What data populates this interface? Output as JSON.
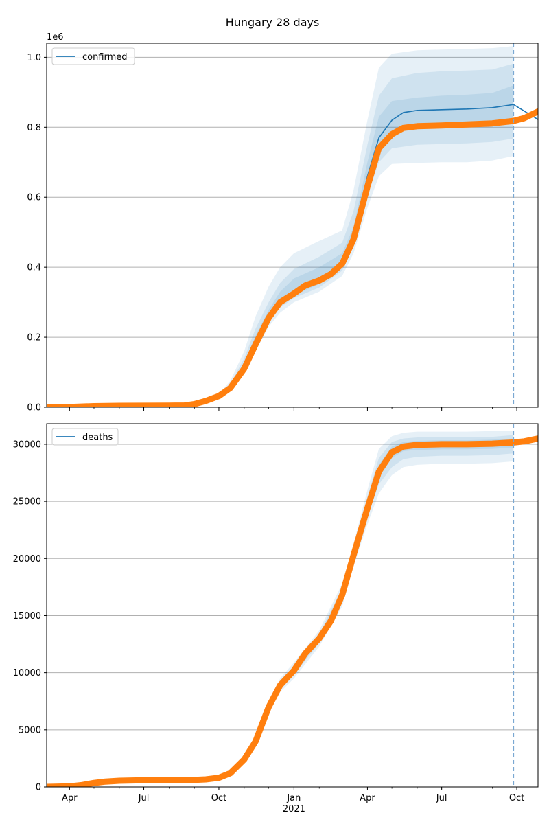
{
  "title": "Hungary 28 days",
  "colors": {
    "model": "#1f77b4",
    "observed": "#ff7f0e",
    "band": "#1f77b4",
    "grid": "#b0b0b0",
    "forecast_line": "#7aa8d2"
  },
  "x_axis": {
    "type": "date",
    "range": [
      "2020-03-04",
      "2021-10-27"
    ],
    "ticks": [
      {
        "date": "2020-04-01",
        "label": "Apr"
      },
      {
        "date": "2020-07-01",
        "label": "Jul"
      },
      {
        "date": "2020-10-01",
        "label": "Oct"
      },
      {
        "date": "2021-01-01",
        "label": "Jan"
      },
      {
        "date": "2021-04-01",
        "label": "Apr"
      },
      {
        "date": "2021-07-01",
        "label": "Jul"
      },
      {
        "date": "2021-10-01",
        "label": "Oct"
      }
    ],
    "year_label": {
      "date": "2021-01-01",
      "label": "2021"
    }
  },
  "chart_data": [
    {
      "type": "line",
      "title": "Hungary 28 days",
      "legend": "confirmed",
      "legend_position": "top-left",
      "grid": "y",
      "ylim": [
        0,
        1040000
      ],
      "y_offset_label": "1e6",
      "y_ticks": [
        "0.0",
        "0.2",
        "0.4",
        "0.6",
        "0.8",
        "1.0"
      ],
      "y_tick_values": [
        0,
        200000,
        400000,
        600000,
        800000,
        1000000
      ],
      "forecast_date": "2021-09-27",
      "observed": {
        "x": [
          "2020-03-04",
          "2020-04-01",
          "2020-05-01",
          "2020-06-01",
          "2020-07-01",
          "2020-08-01",
          "2020-08-20",
          "2020-09-01",
          "2020-09-15",
          "2020-10-01",
          "2020-10-15",
          "2020-11-01",
          "2020-11-15",
          "2020-12-01",
          "2020-12-15",
          "2021-01-01",
          "2021-01-15",
          "2021-02-01",
          "2021-02-15",
          "2021-03-01",
          "2021-03-15",
          "2021-04-01",
          "2021-04-15",
          "2021-05-01",
          "2021-05-15",
          "2021-06-01",
          "2021-07-01",
          "2021-08-01",
          "2021-09-01",
          "2021-09-27",
          "2021-10-10",
          "2021-10-27"
        ],
        "y": [
          0,
          500,
          3000,
          4000,
          4200,
          4600,
          5000,
          9000,
          18000,
          32000,
          55000,
          110000,
          180000,
          255000,
          300000,
          325000,
          348000,
          362000,
          380000,
          410000,
          480000,
          630000,
          740000,
          780000,
          798000,
          803000,
          805000,
          808000,
          811000,
          818000,
          826000,
          845000
        ]
      },
      "model": {
        "x": [
          "2021-03-01",
          "2021-03-15",
          "2021-04-01",
          "2021-04-15",
          "2021-05-01",
          "2021-05-15",
          "2021-06-01",
          "2021-07-01",
          "2021-08-01",
          "2021-09-01",
          "2021-09-27",
          "2021-10-27"
        ],
        "y": [
          415000,
          490000,
          660000,
          770000,
          820000,
          842000,
          848000,
          850000,
          852000,
          856000,
          865000,
          822000
        ]
      },
      "bands": [
        {
          "x": [
            "2020-09-15",
            "2020-10-01",
            "2020-10-15",
            "2020-11-01",
            "2020-11-15",
            "2020-12-01",
            "2020-12-15",
            "2021-01-01",
            "2021-02-01",
            "2021-03-01",
            "2021-03-15",
            "2021-04-01",
            "2021-04-15",
            "2021-05-01",
            "2021-06-01",
            "2021-07-01",
            "2021-08-01",
            "2021-09-01",
            "2021-09-27"
          ],
          "lower": [
            16000,
            28000,
            48000,
            96000,
            160000,
            230000,
            270000,
            300000,
            330000,
            375000,
            440000,
            570000,
            660000,
            695000,
            698000,
            700000,
            700000,
            705000,
            718000
          ],
          "upper": [
            20000,
            38000,
            75000,
            160000,
            260000,
            345000,
            400000,
            440000,
            475000,
            505000,
            620000,
            820000,
            970000,
            1010000,
            1020000,
            1022000,
            1024000,
            1026000,
            1032000
          ]
        },
        {
          "x": [
            "2020-09-15",
            "2020-10-01",
            "2020-10-15",
            "2020-11-01",
            "2020-11-15",
            "2020-12-01",
            "2020-12-15",
            "2021-01-01",
            "2021-02-01",
            "2021-03-01",
            "2021-03-15",
            "2021-04-01",
            "2021-04-15",
            "2021-05-01",
            "2021-06-01",
            "2021-07-01",
            "2021-08-01",
            "2021-09-01",
            "2021-09-27"
          ],
          "lower": [
            17000,
            30000,
            52000,
            110000,
            175000,
            248000,
            285000,
            312000,
            342000,
            390000,
            460000,
            605000,
            700000,
            740000,
            750000,
            752000,
            754000,
            758000,
            768000
          ],
          "upper": [
            19000,
            35000,
            67000,
            140000,
            225000,
            300000,
            355000,
            395000,
            430000,
            470000,
            560000,
            750000,
            890000,
            940000,
            955000,
            960000,
            962000,
            965000,
            982000
          ]
        },
        {
          "x": [
            "2020-09-15",
            "2020-10-01",
            "2020-10-15",
            "2020-11-01",
            "2020-11-15",
            "2020-12-01",
            "2020-12-15",
            "2021-01-01",
            "2021-02-01",
            "2021-03-01",
            "2021-03-15",
            "2021-04-01",
            "2021-04-15",
            "2021-05-01",
            "2021-06-01",
            "2021-07-01",
            "2021-08-01",
            "2021-09-01",
            "2021-09-27"
          ],
          "lower": [
            17500,
            31000,
            55000,
            118000,
            185000,
            258000,
            293000,
            320000,
            352000,
            400000,
            472000,
            630000,
            735000,
            785000,
            800000,
            802000,
            804000,
            808000,
            815000
          ],
          "upper": [
            18500,
            33000,
            62000,
            128000,
            205000,
            278000,
            330000,
            368000,
            400000,
            440000,
            515000,
            700000,
            830000,
            875000,
            885000,
            890000,
            893000,
            898000,
            920000
          ]
        }
      ]
    },
    {
      "type": "line",
      "legend": "deaths",
      "legend_position": "top-left",
      "grid": "y",
      "ylim": [
        0,
        31800
      ],
      "y_ticks": [
        "0",
        "5000",
        "10000",
        "15000",
        "20000",
        "25000",
        "30000"
      ],
      "y_tick_values": [
        0,
        5000,
        10000,
        15000,
        20000,
        25000,
        30000
      ],
      "forecast_date": "2021-09-27",
      "observed": {
        "x": [
          "2020-03-04",
          "2020-04-01",
          "2020-04-15",
          "2020-05-01",
          "2020-05-15",
          "2020-06-01",
          "2020-07-01",
          "2020-08-01",
          "2020-09-01",
          "2020-09-15",
          "2020-10-01",
          "2020-10-15",
          "2020-11-01",
          "2020-11-15",
          "2020-12-01",
          "2020-12-15",
          "2021-01-01",
          "2021-01-15",
          "2021-02-01",
          "2021-02-15",
          "2021-03-01",
          "2021-03-15",
          "2021-04-01",
          "2021-04-15",
          "2021-05-01",
          "2021-05-15",
          "2021-06-01",
          "2021-07-01",
          "2021-08-01",
          "2021-09-01",
          "2021-09-27",
          "2021-10-10",
          "2021-10-27"
        ],
        "y": [
          0,
          50,
          150,
          350,
          470,
          540,
          590,
          600,
          620,
          660,
          800,
          1200,
          2400,
          4000,
          7000,
          8900,
          10200,
          11700,
          13000,
          14500,
          16800,
          20300,
          24400,
          27600,
          29300,
          29800,
          29950,
          30000,
          30000,
          30050,
          30150,
          30250,
          30500
        ]
      },
      "model": {
        "x": [
          "2021-04-15",
          "2021-05-01",
          "2021-05-15",
          "2021-06-01",
          "2021-07-01",
          "2021-08-01",
          "2021-09-01",
          "2021-09-27",
          "2021-10-27"
        ],
        "y": [
          27500,
          29300,
          29900,
          30000,
          30020,
          30050,
          30100,
          30150,
          30450
        ]
      },
      "bands": [
        {
          "x": [
            "2020-12-01",
            "2020-12-15",
            "2021-01-01",
            "2021-02-01",
            "2021-03-01",
            "2021-03-15",
            "2021-04-01",
            "2021-04-15",
            "2021-05-01",
            "2021-05-15",
            "2021-06-01",
            "2021-07-01",
            "2021-08-01",
            "2021-09-01",
            "2021-09-27"
          ],
          "lower": [
            6500,
            8300,
            9500,
            12300,
            15800,
            19300,
            23000,
            25700,
            27300,
            28000,
            28200,
            28300,
            28300,
            28350,
            28500
          ],
          "upper": [
            7500,
            9500,
            10900,
            13700,
            17800,
            21300,
            26000,
            29600,
            30700,
            31000,
            31100,
            31100,
            31100,
            31150,
            31200
          ]
        },
        {
          "x": [
            "2020-12-01",
            "2020-12-15",
            "2021-01-01",
            "2021-02-01",
            "2021-03-01",
            "2021-03-15",
            "2021-04-01",
            "2021-04-15",
            "2021-05-01",
            "2021-05-15",
            "2021-06-01",
            "2021-07-01",
            "2021-08-01",
            "2021-09-01",
            "2021-09-27"
          ],
          "lower": [
            6700,
            8500,
            9800,
            12600,
            16200,
            19800,
            23600,
            26500,
            28000,
            28700,
            28900,
            29000,
            29000,
            29050,
            29200
          ],
          "upper": [
            7300,
            9300,
            10600,
            13400,
            17400,
            20800,
            25400,
            28800,
            30200,
            30500,
            30600,
            30600,
            30600,
            30650,
            30800
          ]
        },
        {
          "x": [
            "2020-12-01",
            "2020-12-15",
            "2021-01-01",
            "2021-02-01",
            "2021-03-01",
            "2021-03-15",
            "2021-04-01",
            "2021-04-15",
            "2021-05-01",
            "2021-05-15",
            "2021-06-01",
            "2021-07-01",
            "2021-08-01",
            "2021-09-01",
            "2021-09-27"
          ],
          "lower": [
            6850,
            8700,
            10000,
            12800,
            16500,
            20100,
            24100,
            27200,
            28800,
            29400,
            29500,
            29550,
            29560,
            29600,
            29700
          ],
          "upper": [
            7150,
            9100,
            10400,
            13200,
            17100,
            20500,
            24900,
            28200,
            29800,
            30200,
            30300,
            30350,
            30350,
            30400,
            30500
          ]
        }
      ]
    }
  ]
}
